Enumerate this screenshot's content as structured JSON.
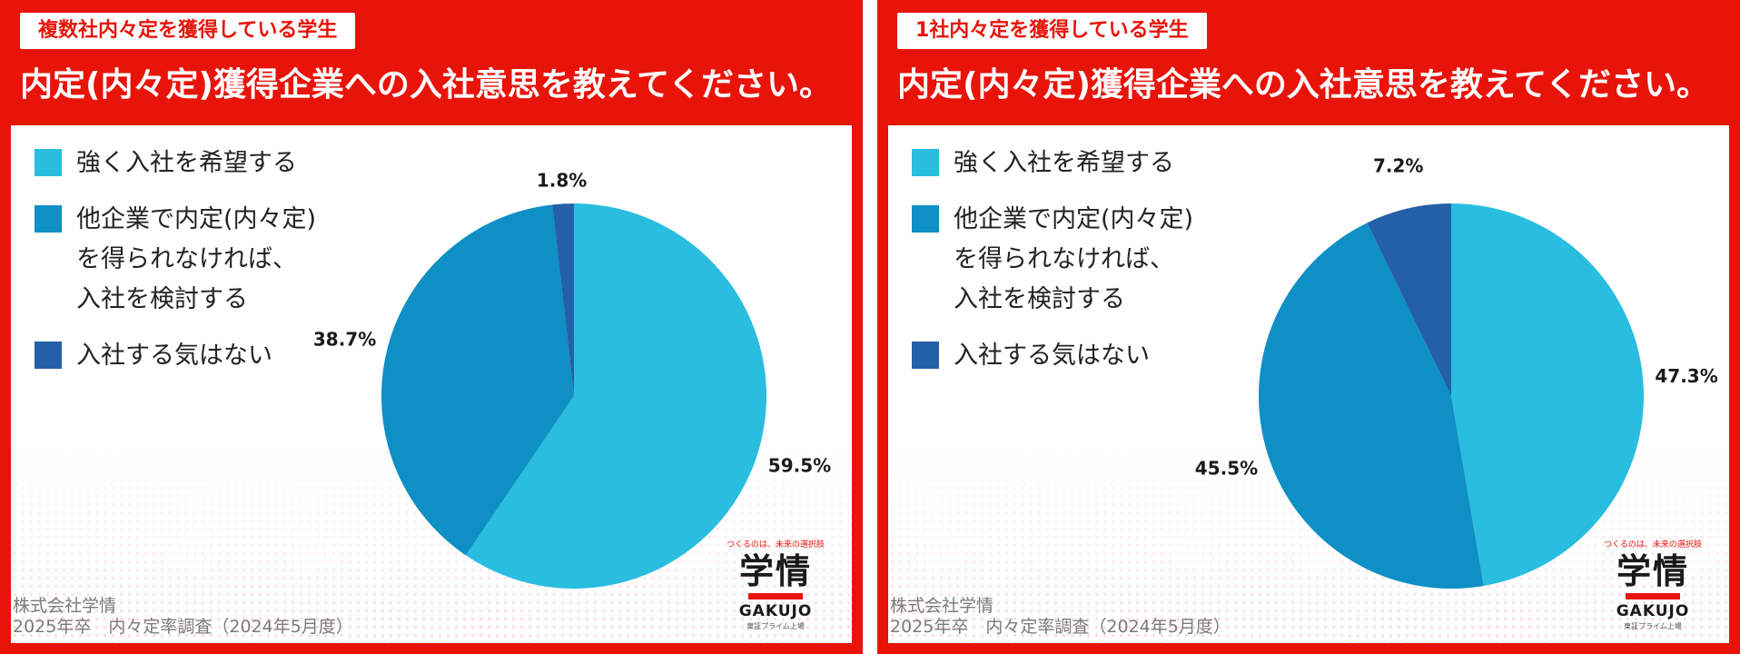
{
  "colors": {
    "frame": "#e8140a",
    "strong": "#29bde0",
    "conditional": "#0e8fc6",
    "none": "#2460a8"
  },
  "legend": {
    "items": [
      {
        "label": "強く入社を希望する",
        "color": "#29bde0"
      },
      {
        "label": "他企業で内定(内々定)\nを得られなければ、\n入社を検討する",
        "color": "#0e8fc6"
      },
      {
        "label": "入社する気はない",
        "color": "#2460a8"
      }
    ]
  },
  "question": "内定(内々定)獲得企業への入社意思を教えてください。",
  "panels": [
    {
      "tag": "複数社内々定を獲得している学生"
    },
    {
      "tag": "1社内々定を獲得している学生"
    }
  ],
  "footer": {
    "company": "株式会社学情",
    "survey": "2025年卒　内々定率調査（2024年5月度）"
  },
  "logo": {
    "tagline": "つくるのは、未来の選択肢",
    "kanji": "学情",
    "name": "GAKUJO",
    "sub": "東証プライム上場"
  },
  "chart_data": [
    {
      "type": "pie",
      "title": "内定(内々定)獲得企業への入社意思を教えてください。",
      "subtitle": "複数社内々定を獲得している学生",
      "categories": [
        "強く入社を希望する",
        "他企業で内定(内々定)を得られなければ、入社を検討する",
        "入社する気はない"
      ],
      "values": [
        59.5,
        38.7,
        1.8
      ],
      "labels": [
        "59.5%",
        "38.7%",
        "1.8%"
      ],
      "colors": [
        "#29bde0",
        "#0e8fc6",
        "#2460a8"
      ],
      "legend_position": "top-left"
    },
    {
      "type": "pie",
      "title": "内定(内々定)獲得企業への入社意思を教えてください。",
      "subtitle": "1社内々定を獲得している学生",
      "categories": [
        "強く入社を希望する",
        "他企業で内定(内々定)を得られなければ、入社を検討する",
        "入社する気はない"
      ],
      "values": [
        47.3,
        45.5,
        7.2
      ],
      "labels": [
        "47.3%",
        "45.5%",
        "7.2%"
      ],
      "colors": [
        "#29bde0",
        "#0e8fc6",
        "#2460a8"
      ],
      "legend_position": "top-left"
    }
  ]
}
